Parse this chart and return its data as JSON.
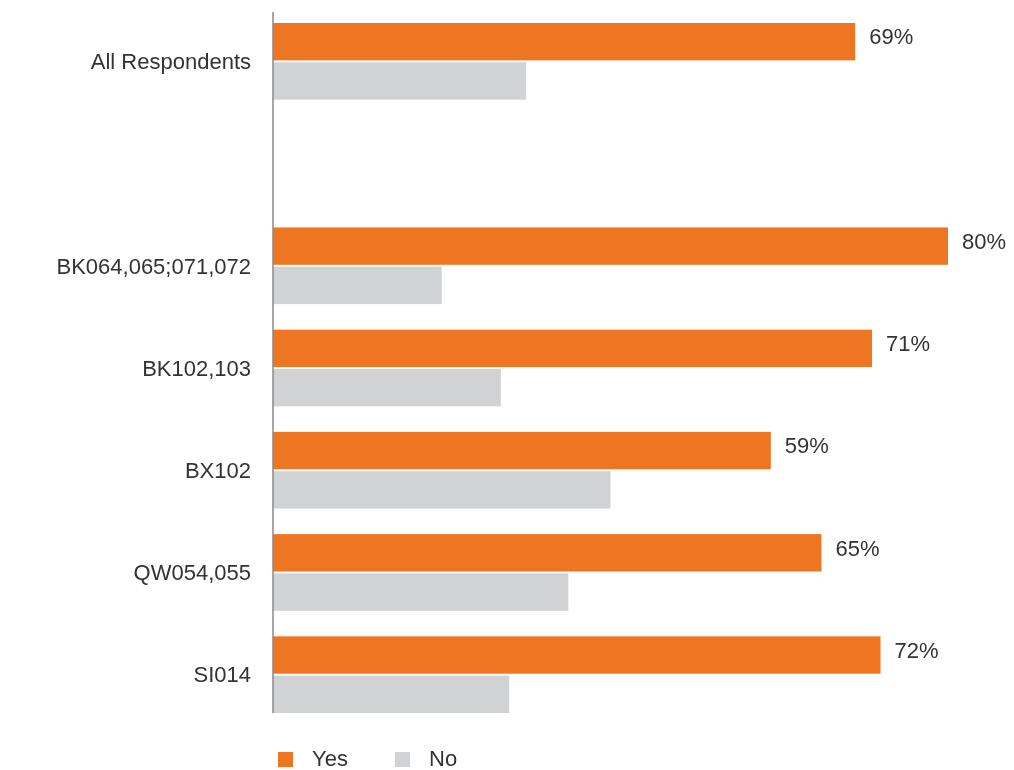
{
  "chart_data": {
    "type": "bar",
    "orientation": "horizontal",
    "categories": [
      "All Respondents",
      null,
      "BK064,065;071,072",
      "BK102,103",
      "BX102",
      "QW054,055",
      "SI014"
    ],
    "series": [
      {
        "name": "Yes",
        "color": "#ee7623",
        "values": [
          69,
          null,
          80,
          71,
          59,
          65,
          72
        ],
        "value_labels": [
          "69%",
          null,
          "80%",
          "71%",
          "59%",
          "65%",
          "72%"
        ]
      },
      {
        "name": "No",
        "color": "#d1d2d4",
        "values": [
          30,
          null,
          20,
          27,
          40,
          35,
          28
        ]
      }
    ],
    "legend": "bottom"
  }
}
